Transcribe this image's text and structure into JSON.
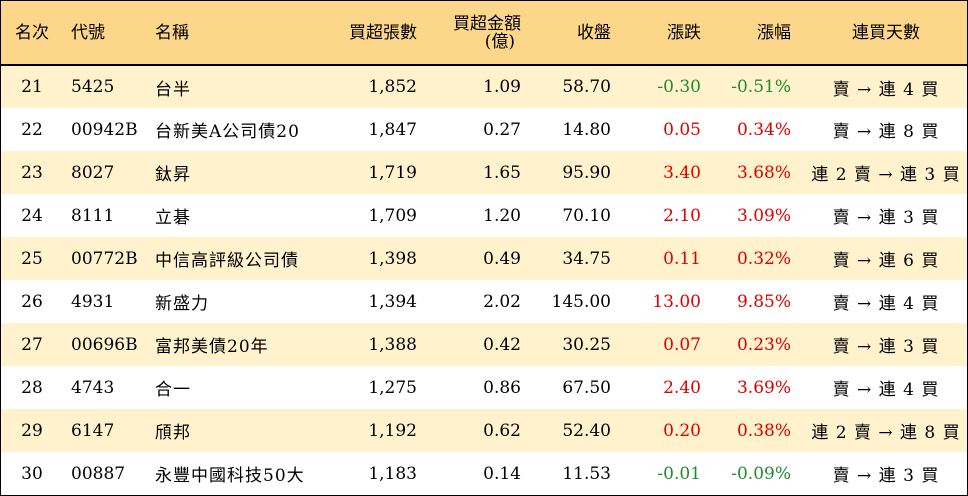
{
  "headers": {
    "rank": "名次",
    "code": "代號",
    "name": "名稱",
    "net_buy_qty": "買超張數",
    "net_buy_amt_line1": "買超金額",
    "net_buy_amt_line2": "(億)",
    "close": "收盤",
    "change": "漲跌",
    "change_pct": "漲幅",
    "streak": "連買天數"
  },
  "colors": {
    "header_bg": "#fcd789",
    "odd_row_bg": "#fff2cc",
    "up": "#e00000",
    "down": "#1f8b2e"
  },
  "rows": [
    {
      "rank": "21",
      "code": "5425",
      "name": "台半",
      "qty": "1,852",
      "amt": "1.09",
      "close": "58.70",
      "change": "-0.30",
      "pct": "-0.51%",
      "streak": "賣 → 連 4 買",
      "dir": "down"
    },
    {
      "rank": "22",
      "code": "00942B",
      "name": "台新美A公司債20",
      "qty": "1,847",
      "amt": "0.27",
      "close": "14.80",
      "change": "0.05",
      "pct": "0.34%",
      "streak": "賣 → 連 8 買",
      "dir": "up"
    },
    {
      "rank": "23",
      "code": "8027",
      "name": "鈦昇",
      "qty": "1,719",
      "amt": "1.65",
      "close": "95.90",
      "change": "3.40",
      "pct": "3.68%",
      "streak": "連 2 賣 → 連 3 買",
      "dir": "up"
    },
    {
      "rank": "24",
      "code": "8111",
      "name": "立碁",
      "qty": "1,709",
      "amt": "1.20",
      "close": "70.10",
      "change": "2.10",
      "pct": "3.09%",
      "streak": "賣 → 連 3 買",
      "dir": "up"
    },
    {
      "rank": "25",
      "code": "00772B",
      "name": "中信高評級公司債",
      "qty": "1,398",
      "amt": "0.49",
      "close": "34.75",
      "change": "0.11",
      "pct": "0.32%",
      "streak": "賣 → 連 6 買",
      "dir": "up"
    },
    {
      "rank": "26",
      "code": "4931",
      "name": "新盛力",
      "qty": "1,394",
      "amt": "2.02",
      "close": "145.00",
      "change": "13.00",
      "pct": "9.85%",
      "streak": "賣 → 連 4 買",
      "dir": "up"
    },
    {
      "rank": "27",
      "code": "00696B",
      "name": "富邦美債20年",
      "qty": "1,388",
      "amt": "0.42",
      "close": "30.25",
      "change": "0.07",
      "pct": "0.23%",
      "streak": "賣 → 連 3 買",
      "dir": "up"
    },
    {
      "rank": "28",
      "code": "4743",
      "name": "合一",
      "qty": "1,275",
      "amt": "0.86",
      "close": "67.50",
      "change": "2.40",
      "pct": "3.69%",
      "streak": "賣 → 連 4 買",
      "dir": "up"
    },
    {
      "rank": "29",
      "code": "6147",
      "name": "頎邦",
      "qty": "1,192",
      "amt": "0.62",
      "close": "52.40",
      "change": "0.20",
      "pct": "0.38%",
      "streak": "連 2 賣 → 連 8 買",
      "dir": "up"
    },
    {
      "rank": "30",
      "code": "00887",
      "name": "永豐中國科技50大",
      "qty": "1,183",
      "amt": "0.14",
      "close": "11.53",
      "change": "-0.01",
      "pct": "-0.09%",
      "streak": "賣 → 連 3 買",
      "dir": "down"
    }
  ]
}
